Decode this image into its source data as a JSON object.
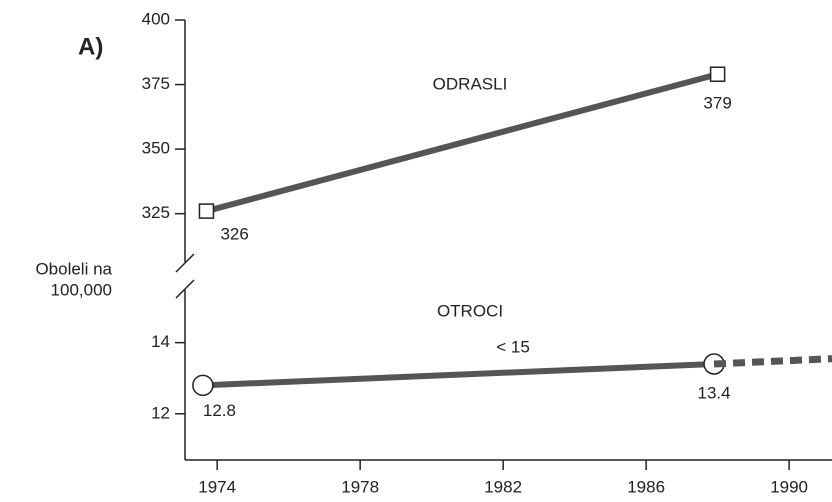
{
  "chart_data": {
    "type": "line",
    "panel_label": "A)",
    "ylabel": [
      "Oboleli na",
      "100,000"
    ],
    "xlim": [
      1973.1,
      1991.2
    ],
    "xticks": [
      1974,
      1978,
      1982,
      1986,
      1990
    ],
    "color": "#555555",
    "panels": [
      {
        "annotation": "ODRASLI",
        "ylim": [
          309,
          400
        ],
        "yticks": [
          325,
          350,
          375,
          400
        ],
        "series": [
          {
            "x": [
              1973.7,
              1988
            ],
            "values": [
              326,
              379
            ],
            "marker": "square"
          }
        ]
      },
      {
        "annotation": "OTROCI",
        "note": "< 15",
        "ylim": [
          10.7,
          15.2
        ],
        "yticks": [
          12,
          14
        ],
        "series": [
          {
            "x": [
              1973.6,
              1987.9
            ],
            "values": [
              12.8,
              13.4
            ],
            "marker": "circle"
          },
          {
            "x": [
              1987.9,
              1991.2
            ],
            "values": [
              13.4,
              13.55
            ],
            "dash": true
          }
        ]
      }
    ]
  }
}
